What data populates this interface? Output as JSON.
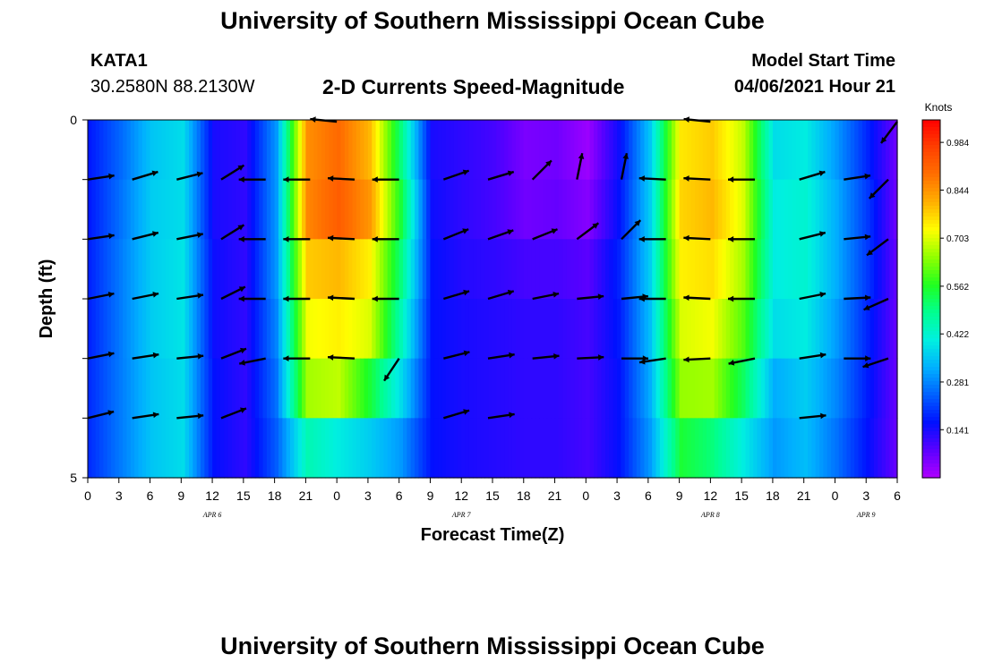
{
  "header": {
    "title": "University of Southern Mississippi Ocean Cube",
    "station_id": "KATA1",
    "station_coords": "30.2580N  88.2130W",
    "plot_title": "2-D Currents Speed-Magnitude",
    "model_start_label": "Model Start Time",
    "model_start_time": "04/06/2021 Hour 21"
  },
  "footer": {
    "title": "University of Southern Mississippi Ocean Cube"
  },
  "chart_data": {
    "type": "heatmap",
    "xlabel": "Forecast Time(Z)",
    "ylabel": "Depth (ft)",
    "x_tick_labels": [
      "0",
      "3",
      "6",
      "9",
      "12",
      "15",
      "18",
      "21",
      "0",
      "3",
      "6",
      "9",
      "12",
      "15",
      "18",
      "21",
      "0",
      "3",
      "6",
      "9",
      "12",
      "15",
      "18",
      "21",
      "0",
      "3",
      "6"
    ],
    "date_labels": [
      {
        "text": "APR 6",
        "tick_index": 4
      },
      {
        "text": "APR 7",
        "tick_index": 12
      },
      {
        "text": "APR 8",
        "tick_index": 20
      },
      {
        "text": "APR 9",
        "tick_index": 25
      }
    ],
    "y_tick_labels": [
      "0",
      "5"
    ],
    "ylim": [
      0,
      5
    ],
    "colorbar": {
      "unit": "Knots",
      "range": [
        0.0,
        1.05
      ],
      "tick_labels": [
        "0.984",
        "0.844",
        "0.703",
        "0.562",
        "0.422",
        "0.281",
        "0.141"
      ],
      "tick_values": [
        0.984,
        0.844,
        0.703,
        0.562,
        0.422,
        0.281,
        0.141
      ],
      "colors": [
        "#b000ff",
        "#5a00ff",
        "#0010ff",
        "#0060ff",
        "#00b0ff",
        "#00f0e0",
        "#00ff90",
        "#20ff20",
        "#90ff00",
        "#ffff00",
        "#ffb000",
        "#ff7000",
        "#ff4000",
        "#ff0000"
      ]
    },
    "series_speed": {
      "hours": [
        0,
        3,
        6,
        9,
        12,
        15,
        18,
        21,
        24,
        27,
        30,
        33,
        36,
        39,
        42,
        45,
        48,
        51,
        54,
        57,
        60,
        63,
        66,
        69,
        72,
        75,
        78
      ],
      "rows": [
        [
          0.17,
          0.25,
          0.35,
          0.38,
          0.14,
          0.12,
          0.3,
          0.85,
          0.9,
          0.8,
          0.5,
          0.14,
          0.12,
          0.1,
          0.05,
          0.06,
          0.02,
          0.15,
          0.35,
          0.75,
          0.78,
          0.68,
          0.38,
          0.4,
          0.3,
          0.18,
          0.05
        ],
        [
          0.17,
          0.26,
          0.36,
          0.38,
          0.14,
          0.12,
          0.3,
          0.86,
          0.92,
          0.84,
          0.55,
          0.15,
          0.12,
          0.1,
          0.06,
          0.07,
          0.04,
          0.16,
          0.36,
          0.77,
          0.8,
          0.7,
          0.4,
          0.42,
          0.32,
          0.2,
          0.05
        ],
        [
          0.18,
          0.27,
          0.36,
          0.39,
          0.15,
          0.12,
          0.3,
          0.78,
          0.8,
          0.74,
          0.5,
          0.16,
          0.13,
          0.12,
          0.1,
          0.1,
          0.08,
          0.18,
          0.36,
          0.74,
          0.76,
          0.66,
          0.4,
          0.42,
          0.32,
          0.2,
          0.06
        ],
        [
          0.18,
          0.27,
          0.36,
          0.39,
          0.15,
          0.12,
          0.28,
          0.72,
          0.74,
          0.7,
          0.45,
          0.16,
          0.14,
          0.13,
          0.12,
          0.12,
          0.1,
          0.17,
          0.34,
          0.7,
          0.72,
          0.6,
          0.38,
          0.4,
          0.3,
          0.18,
          0.06
        ],
        [
          0.19,
          0.27,
          0.35,
          0.38,
          0.16,
          0.12,
          0.26,
          0.66,
          0.68,
          0.55,
          0.38,
          0.16,
          0.14,
          0.13,
          0.12,
          0.12,
          0.1,
          0.16,
          0.32,
          0.65,
          0.66,
          0.52,
          0.32,
          0.36,
          0.28,
          0.17,
          0.06
        ],
        [
          0.19,
          0.27,
          0.35,
          0.38,
          0.16,
          0.12,
          0.24,
          0.45,
          0.4,
          0.36,
          0.3,
          0.16,
          0.14,
          0.13,
          0.12,
          0.12,
          0.1,
          0.16,
          0.3,
          0.55,
          0.5,
          0.4,
          0.3,
          0.34,
          0.26,
          0.16,
          0.06
        ]
      ]
    },
    "vectors": {
      "rows": [
        [
          null,
          null,
          null,
          null,
          null,
          null,
          null,
          null,
          [
            -1,
            0.1
          ],
          null,
          null,
          null,
          null,
          null,
          null,
          null,
          null,
          null,
          null,
          null,
          [
            -1,
            0.1
          ],
          null,
          null,
          null,
          null,
          null,
          [
            -0.6,
            -0.8
          ]
        ],
        [
          [
            1,
            0.15
          ],
          [
            1,
            0.3
          ],
          [
            1,
            0.25
          ],
          [
            0.8,
            0.5
          ],
          [
            -1,
            0
          ],
          [
            -1,
            0
          ],
          [
            -1,
            0.05
          ],
          [
            -1,
            0
          ],
          [
            1,
            0.35
          ],
          [
            1,
            0.3
          ],
          [
            0.7,
            0.7
          ],
          [
            0.2,
            1
          ],
          [
            0.2,
            1
          ],
          [
            -1,
            0.05
          ],
          [
            -1,
            0.05
          ],
          [
            -1,
            0
          ],
          [
            1,
            0.3
          ],
          [
            1,
            0.15
          ],
          [
            -0.7,
            -0.7
          ]
        ],
        [
          [
            1,
            0.15
          ],
          [
            1,
            0.25
          ],
          [
            1,
            0.2
          ],
          [
            0.8,
            0.5
          ],
          [
            -1,
            0
          ],
          [
            -1,
            0
          ],
          [
            -1,
            0.05
          ],
          [
            -1,
            0
          ],
          [
            1,
            0.4
          ],
          [
            1,
            0.35
          ],
          [
            1,
            0.4
          ],
          [
            0.8,
            0.6
          ],
          [
            0.7,
            0.7
          ],
          [
            -1,
            0
          ],
          [
            -1,
            0.05
          ],
          [
            -1,
            0
          ],
          [
            1,
            0.25
          ],
          [
            1,
            0.1
          ],
          [
            -0.8,
            -0.6
          ]
        ],
        [
          [
            1,
            0.2
          ],
          [
            1,
            0.2
          ],
          [
            1,
            0.15
          ],
          [
            0.8,
            0.4
          ],
          [
            -1,
            0
          ],
          [
            -1,
            0
          ],
          [
            -1,
            0.05
          ],
          [
            -1,
            0
          ],
          [
            1,
            0.3
          ],
          [
            1,
            0.3
          ],
          [
            1,
            0.2
          ],
          [
            1,
            0.1
          ],
          [
            1,
            0.1
          ],
          [
            -1,
            0
          ],
          [
            -1,
            0.05
          ],
          [
            -1,
            0
          ],
          [
            1,
            0.2
          ],
          [
            1,
            0.05
          ],
          [
            -0.9,
            -0.4
          ]
        ],
        [
          [
            1,
            0.2
          ],
          [
            1,
            0.15
          ],
          [
            1,
            0.1
          ],
          [
            0.9,
            0.35
          ],
          [
            -1,
            -0.2
          ],
          [
            -1,
            0
          ],
          [
            -1,
            0.05
          ],
          [
            -0.6,
            -0.9
          ],
          [
            1,
            0.25
          ],
          [
            1,
            0.15
          ],
          [
            1,
            0.1
          ],
          [
            1,
            0.05
          ],
          [
            1,
            0
          ],
          [
            -1,
            -0.15
          ],
          [
            -1,
            -0.05
          ],
          [
            -1,
            -0.2
          ],
          [
            1,
            0.15
          ],
          [
            1,
            0
          ],
          [
            -0.9,
            -0.3
          ]
        ],
        [
          [
            1,
            0.25
          ],
          [
            1,
            0.15
          ],
          [
            1,
            0.1
          ],
          [
            0.9,
            0.35
          ],
          null,
          null,
          null,
          null,
          [
            1,
            0.3
          ],
          [
            1,
            0.15
          ],
          null,
          null,
          null,
          null,
          null,
          null,
          [
            1,
            0.1
          ],
          null,
          null
        ]
      ]
    }
  }
}
